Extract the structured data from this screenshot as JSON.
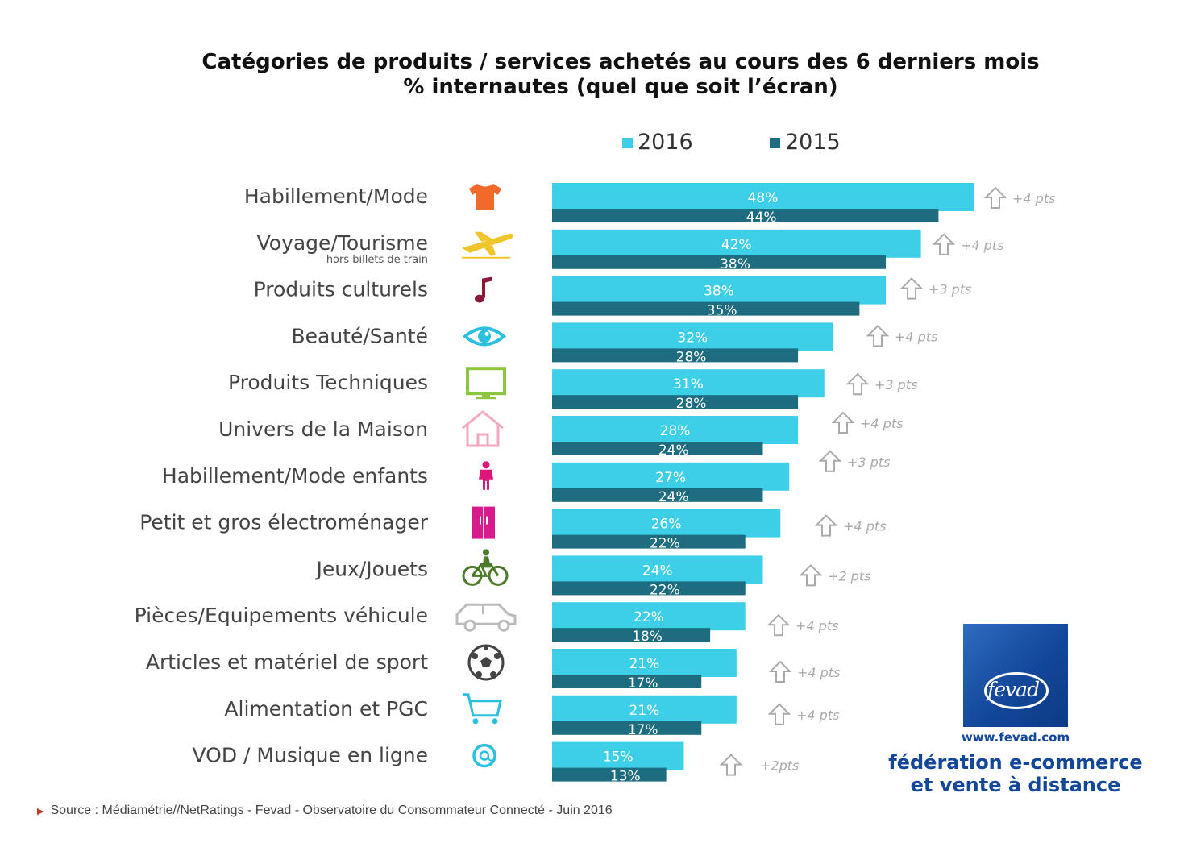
{
  "chart_data": {
    "type": "bar",
    "orientation": "horizontal",
    "title_line1": "Catégories de produits / services achetés au cours des 6 derniers mois",
    "title_line2": "% internautes (quel que soit l’écran)",
    "categories": [
      "Habillement/Mode",
      "Voyage/Tourisme",
      "Produits culturels",
      "Beauté/Santé",
      "Produits Techniques",
      "Univers de la Maison",
      "Habillement/Mode enfants",
      "Petit et gros électroménager",
      "Jeux/Jouets",
      "Pièces/Equipements véhicule",
      "Articles et matériel de sport",
      "Alimentation et PGC",
      "VOD / Musique en ligne"
    ],
    "category_notes": [
      "",
      "hors billets de train",
      "",
      "",
      "",
      "",
      "",
      "",
      "",
      "",
      "",
      "",
      ""
    ],
    "icons": [
      "tshirt-icon",
      "airplane-icon",
      "music-note-icon",
      "eye-icon",
      "tv-icon",
      "house-icon",
      "child-icon",
      "fridge-icon",
      "bicycle-icon",
      "car-icon",
      "football-icon",
      "cart-icon",
      "at-sign-icon"
    ],
    "icon_colors": [
      "#f26a2a",
      "#f0c52a",
      "#8b1a3a",
      "#2bbfe0",
      "#8cc63f",
      "#f4a7c3",
      "#e0157a",
      "#d81b8c",
      "#4a7a2a",
      "#bbbbbb",
      "#444444",
      "#2bbfe0",
      "#2bbfe0"
    ],
    "series": [
      {
        "name": "2016",
        "color": "#3ecfe8",
        "values": [
          48,
          42,
          38,
          32,
          31,
          28,
          27,
          26,
          24,
          22,
          21,
          21,
          15
        ],
        "labels": [
          "48%",
          "42%",
          "38%",
          "32%",
          "31%",
          "28%",
          "27%",
          "26%",
          "24%",
          "22%",
          "21%",
          "21%",
          "15%"
        ]
      },
      {
        "name": "2015",
        "color": "#1d6c80",
        "values": [
          44,
          38,
          35,
          28,
          28,
          24,
          24,
          22,
          22,
          18,
          17,
          17,
          13
        ],
        "labels": [
          "44%",
          "38%",
          "35%",
          "28%",
          "28%",
          "24%",
          "24%",
          "22%",
          "22%",
          "18%",
          "17%",
          "17%",
          "13%"
        ]
      }
    ],
    "deltas": [
      "+4 pts",
      "+4 pts",
      "+3 pts",
      "+4 pts",
      "+3 pts",
      "+4 pts",
      "+3 pts",
      "+4 pts",
      "+2 pts",
      "+4 pts",
      "+4 pts",
      "+4 pts",
      "+2pts"
    ],
    "xlim": [
      0,
      50
    ],
    "legend": "top"
  },
  "legend": {
    "label_2016": "2016",
    "label_2015": "2015",
    "color_2016": "#3ecfe8",
    "color_2015": "#1d6c80"
  },
  "logo": {
    "word": "fevad",
    "url": "www.fevad.com",
    "line1": "fédération e-commerce",
    "line2": "et vente à distance"
  },
  "source": "Source : Médiamétrie//NetRatings - Fevad - Observatoire du Consommateur Connecté - Juin 2016"
}
